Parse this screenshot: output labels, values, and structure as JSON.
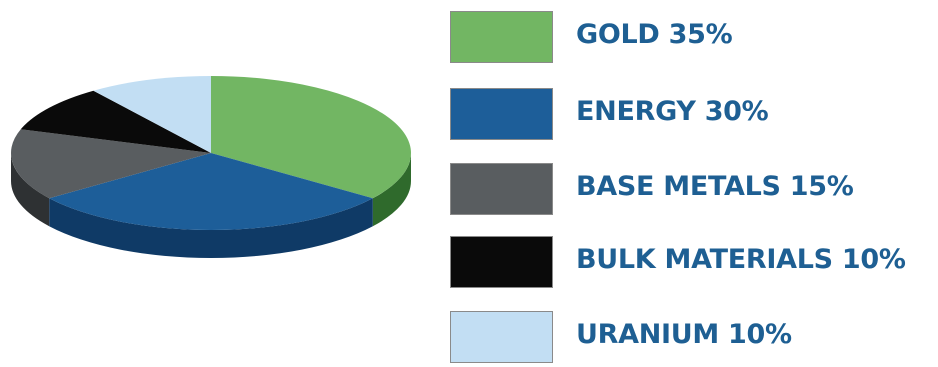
{
  "chart_data": {
    "type": "pie",
    "title": "",
    "slices": [
      {
        "label": "GOLD 35%",
        "value": 35,
        "color": "#72b663",
        "side_color": "#2f6a2c"
      },
      {
        "label": "ENERGY 30%",
        "value": 30,
        "color": "#1d5e99",
        "side_color": "#0f3a66"
      },
      {
        "label": "BASE METALS 15%",
        "value": 15,
        "color": "#595d60",
        "side_color": "#2e3133"
      },
      {
        "label": "BULK MATERIALS 10%",
        "value": 10,
        "color": "#0a0a0a",
        "side_color": "#000000"
      },
      {
        "label": "URANIUM 10%",
        "value": 10,
        "color": "#c2def3",
        "side_color": "#8fb3cf"
      }
    ],
    "legend_position": "right",
    "style": "3d"
  }
}
